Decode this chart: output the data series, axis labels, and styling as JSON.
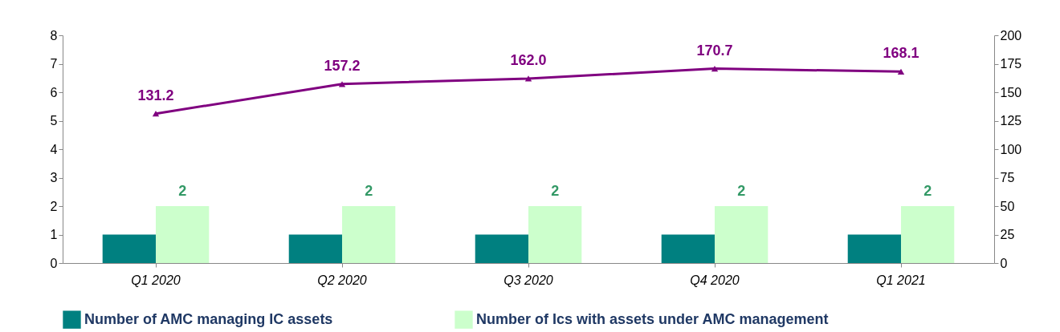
{
  "chart_data": {
    "type": "bar",
    "categories": [
      "Q1 2020",
      "Q2 2020",
      "Q3 2020",
      "Q4 2020",
      "Q1 2021"
    ],
    "series": [
      {
        "name": "Number of AMC managing IC assets",
        "color": "#008080",
        "values": [
          1,
          1,
          1,
          1,
          1
        ]
      },
      {
        "name": "Number of Ics with assets under AMC management",
        "color": "#ccffcc",
        "values": [
          2,
          2,
          2,
          2,
          2
        ],
        "value_labels": [
          "2",
          "2",
          "2",
          "2",
          "2"
        ]
      },
      {
        "type": "line",
        "axis": "y2",
        "color": "#800080",
        "values": [
          131.2,
          157.2,
          162.0,
          170.7,
          168.1
        ],
        "value_labels": [
          "131.2",
          "157.2",
          "162.0",
          "170.7",
          "168.1"
        ]
      }
    ],
    "ylim": [
      0,
      8
    ],
    "yticks": [
      0,
      1,
      2,
      3,
      4,
      5,
      6,
      7,
      8
    ],
    "y2lim": [
      0,
      200
    ],
    "y2ticks": [
      0,
      25,
      50,
      75,
      100,
      125,
      150,
      175,
      200
    ],
    "marker": "triangle",
    "legend": "bottom"
  }
}
